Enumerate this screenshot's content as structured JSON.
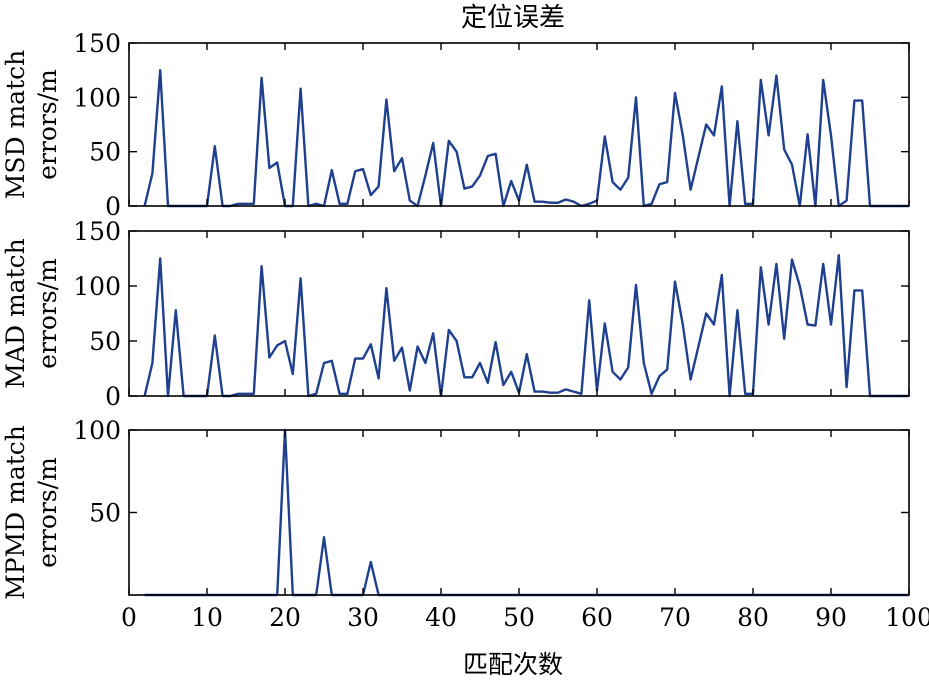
{
  "chart_data": {
    "type": "line",
    "title": "定位误差",
    "xlabel": "匹配次数",
    "xlim": [
      0,
      100
    ],
    "xticks": [
      0,
      10,
      20,
      30,
      40,
      50,
      60,
      70,
      80,
      90,
      100
    ],
    "line_color": "#1f3f8f",
    "grid": false,
    "x": [
      1,
      2,
      3,
      4,
      5,
      6,
      7,
      8,
      9,
      10,
      11,
      12,
      13,
      14,
      15,
      16,
      17,
      18,
      19,
      20,
      21,
      22,
      23,
      24,
      25,
      26,
      27,
      28,
      29,
      30,
      31,
      32,
      33,
      34,
      35,
      36,
      37,
      38,
      39,
      40,
      41,
      42,
      43,
      44,
      45,
      46,
      47,
      48,
      49,
      50,
      51,
      52,
      53,
      54,
      55,
      56,
      57,
      58,
      59,
      60,
      61,
      62,
      63,
      64,
      65,
      66,
      67,
      68,
      69,
      70,
      71,
      72,
      73,
      74,
      75,
      76,
      77,
      78,
      79,
      80,
      81,
      82,
      83,
      84,
      85,
      86,
      87,
      88,
      89,
      90,
      91,
      92,
      93,
      94,
      95,
      96,
      97,
      98,
      99,
      100
    ],
    "panels": [
      {
        "ylabel": [
          "MSD match",
          "errors/m"
        ],
        "ylim": [
          0,
          150
        ],
        "yticks": [
          0,
          50,
          100,
          150
        ],
        "series": [
          {
            "values": [
              null,
              0,
              30,
              125,
              0,
              0,
              0,
              0,
              0,
              0,
              55,
              0,
              0,
              2,
              2,
              2,
              118,
              35,
              40,
              0,
              0,
              108,
              0,
              2,
              0,
              33,
              2,
              2,
              32,
              34,
              10,
              18,
              98,
              32,
              44,
              5,
              0,
              28,
              58,
              0,
              60,
              50,
              16,
              18,
              28,
              46,
              48,
              0,
              23,
              5,
              38,
              4,
              4,
              3,
              3,
              6,
              4,
              0,
              2,
              5,
              64,
              22,
              15,
              26,
              100,
              0,
              2,
              20,
              22,
              104,
              65,
              15,
              45,
              75,
              65,
              110,
              0,
              78,
              2,
              2,
              116,
              65,
              120,
              52,
              38,
              0,
              66,
              0,
              116,
              65,
              0,
              5,
              97,
              97,
              0,
              0,
              0,
              0,
              0,
              0
            ]
          }
        ]
      },
      {
        "ylabel": [
          "MAD match",
          "errors/m"
        ],
        "ylim": [
          0,
          150
        ],
        "yticks": [
          0,
          50,
          100,
          150
        ],
        "series": [
          {
            "values": [
              null,
              0,
              30,
              125,
              0,
              78,
              0,
              0,
              0,
              0,
              55,
              0,
              0,
              2,
              2,
              2,
              118,
              35,
              46,
              50,
              20,
              107,
              0,
              2,
              30,
              32,
              2,
              2,
              34,
              34,
              47,
              16,
              98,
              32,
              44,
              5,
              45,
              30,
              57,
              0,
              60,
              50,
              17,
              17,
              30,
              12,
              49,
              10,
              22,
              3,
              38,
              4,
              4,
              3,
              3,
              6,
              4,
              2,
              87,
              5,
              66,
              22,
              15,
              26,
              101,
              30,
              2,
              18,
              24,
              104,
              65,
              15,
              45,
              75,
              65,
              110,
              0,
              78,
              2,
              2,
              117,
              65,
              120,
              52,
              124,
              100,
              65,
              64,
              120,
              65,
              128,
              8,
              96,
              96,
              0,
              0,
              0,
              0,
              0,
              0
            ]
          }
        ]
      },
      {
        "ylabel": [
          "MPMD match",
          "errors/m"
        ],
        "ylim": [
          0,
          100
        ],
        "yticks": [
          50,
          100
        ],
        "series": [
          {
            "values": [
              null,
              0,
              0,
              0,
              0,
              0,
              0,
              0,
              0,
              0,
              0,
              0,
              0,
              0,
              0,
              0,
              0,
              0,
              0,
              100,
              0,
              0,
              0,
              0,
              35,
              0,
              0,
              0,
              0,
              0,
              20,
              0,
              0,
              0,
              0,
              0,
              0,
              0,
              0,
              0,
              0,
              0,
              0,
              0,
              0,
              0,
              0,
              0,
              0,
              0,
              0,
              0,
              0,
              0,
              0,
              0,
              0,
              0,
              0,
              0,
              0,
              0,
              0,
              0,
              0,
              0,
              0,
              0,
              0,
              0,
              0,
              0,
              0,
              0,
              0,
              0,
              0,
              0,
              0,
              0,
              0,
              0,
              0,
              0,
              0,
              0,
              0,
              0,
              0,
              0,
              0,
              0,
              0,
              0,
              0,
              0,
              0,
              0,
              0,
              0
            ]
          }
        ]
      }
    ]
  }
}
